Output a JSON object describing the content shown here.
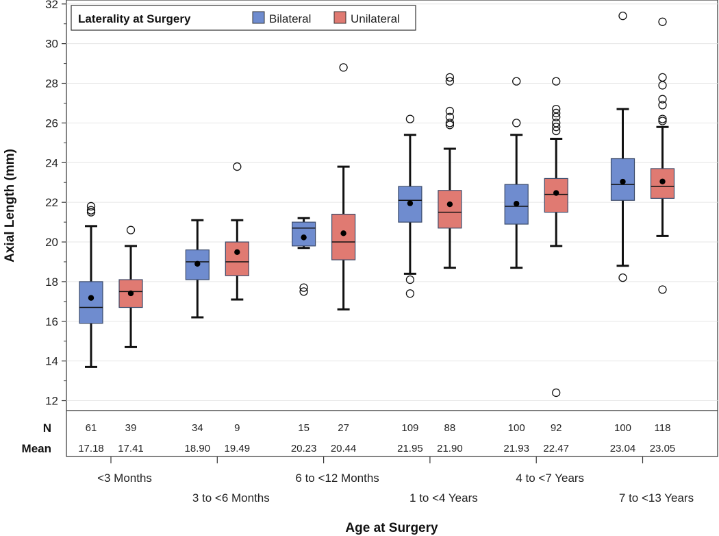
{
  "chart_data": {
    "type": "box",
    "title": "",
    "xlabel": "Age at Surgery",
    "ylabel": "Axial Length (mm)",
    "ylim": [
      11.5,
      32.2
    ],
    "yticks": [
      12,
      14,
      16,
      18,
      20,
      22,
      24,
      26,
      28,
      30,
      32
    ],
    "grid": true,
    "legend": {
      "title": "Laterality at Surgery",
      "position": "top-left",
      "entries": [
        {
          "name": "Bilateral",
          "color": "#6f8ccf"
        },
        {
          "name": "Unilateral",
          "color": "#e07a72"
        }
      ]
    },
    "stat_labels": {
      "n": "N",
      "mean": "Mean"
    },
    "categories": [
      "<3 Months",
      "3 to <6 Months",
      "6 to <12 Months",
      "1 to <4 Years",
      "4 to <7 Years",
      "7 to <13 Years"
    ],
    "series": [
      {
        "name": "Bilateral",
        "color": "#6f8ccf",
        "boxes": [
          {
            "min": 13.7,
            "q1": 15.9,
            "median": 16.7,
            "q3": 18.0,
            "max": 20.8,
            "mean": 17.18,
            "n": "61",
            "mean_label": "17.18",
            "outliers": [
              21.5,
              21.6,
              21.8
            ]
          },
          {
            "min": 16.2,
            "q1": 18.1,
            "median": 19.0,
            "q3": 19.6,
            "max": 21.1,
            "mean": 18.9,
            "n": "34",
            "mean_label": "18.90",
            "outliers": []
          },
          {
            "min": 19.7,
            "q1": 19.8,
            "median": 20.7,
            "q3": 21.0,
            "max": 21.2,
            "mean": 20.23,
            "n": "15",
            "mean_label": "20.23",
            "outliers": [
              17.5,
              17.7
            ]
          },
          {
            "min": 18.4,
            "q1": 21.0,
            "median": 22.1,
            "q3": 22.8,
            "max": 25.4,
            "mean": 21.95,
            "n": "109",
            "mean_label": "21.95",
            "outliers": [
              17.4,
              18.1,
              26.2
            ]
          },
          {
            "min": 18.7,
            "q1": 20.9,
            "median": 21.8,
            "q3": 22.9,
            "max": 25.4,
            "mean": 21.93,
            "n": "100",
            "mean_label": "21.93",
            "outliers": [
              26.0,
              28.1
            ]
          },
          {
            "min": 18.8,
            "q1": 22.1,
            "median": 22.9,
            "q3": 24.2,
            "max": 26.7,
            "mean": 23.04,
            "n": "100",
            "mean_label": "23.04",
            "outliers": [
              18.2,
              31.4
            ]
          }
        ]
      },
      {
        "name": "Unilateral",
        "color": "#e07a72",
        "boxes": [
          {
            "min": 14.7,
            "q1": 16.7,
            "median": 17.5,
            "q3": 18.1,
            "max": 19.8,
            "mean": 17.41,
            "n": "39",
            "mean_label": "17.41",
            "outliers": [
              20.6
            ]
          },
          {
            "min": 17.1,
            "q1": 18.3,
            "median": 19.0,
            "q3": 20.0,
            "max": 21.1,
            "mean": 19.49,
            "n": "9",
            "mean_label": "19.49",
            "outliers": [
              23.8
            ]
          },
          {
            "min": 16.6,
            "q1": 19.1,
            "median": 20.0,
            "q3": 21.4,
            "max": 23.8,
            "mean": 20.44,
            "n": "27",
            "mean_label": "20.44",
            "outliers": [
              28.8
            ]
          },
          {
            "min": 18.7,
            "q1": 20.7,
            "median": 21.5,
            "q3": 22.6,
            "max": 24.7,
            "mean": 21.9,
            "n": "88",
            "mean_label": "21.90",
            "outliers": [
              25.9,
              26.0,
              26.3,
              26.6,
              28.1,
              28.3
            ]
          },
          {
            "min": 19.8,
            "q1": 21.5,
            "median": 22.4,
            "q3": 23.2,
            "max": 25.2,
            "mean": 22.47,
            "n": "92",
            "mean_label": "22.47",
            "outliers": [
              12.4,
              25.6,
              25.8,
              26.0,
              26.3,
              26.5,
              26.7,
              28.1
            ]
          },
          {
            "min": 20.3,
            "q1": 22.2,
            "median": 22.8,
            "q3": 23.7,
            "max": 25.8,
            "mean": 23.05,
            "n": "118",
            "mean_label": "23.05",
            "outliers": [
              17.6,
              26.1,
              26.2,
              26.9,
              27.2,
              27.9,
              28.3,
              31.1
            ]
          }
        ]
      }
    ]
  }
}
